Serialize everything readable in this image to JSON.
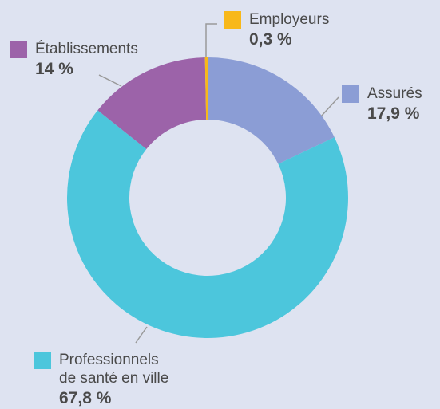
{
  "chart_data": {
    "type": "pie",
    "categories": [
      "Assurés",
      "Professionnels\nde santé en ville",
      "Établissements",
      "Employeurs"
    ],
    "values": [
      17.9,
      67.8,
      14,
      0.3
    ],
    "value_labels": [
      "17,9 %",
      "67,8 %",
      "14 %",
      "0,3 %"
    ],
    "colors": [
      "#8b9dd5",
      "#4cc6dc",
      "#9c63a9",
      "#f8b81a"
    ]
  }
}
